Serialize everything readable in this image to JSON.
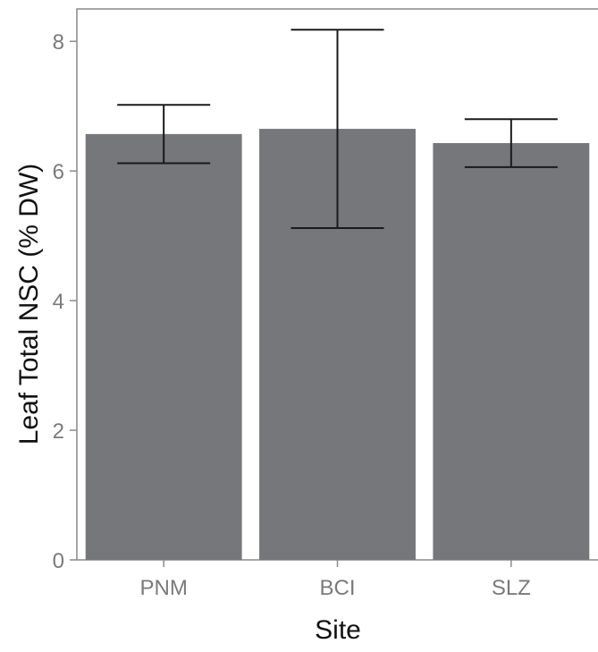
{
  "chart_data": {
    "type": "bar",
    "title": "",
    "xlabel": "Site",
    "ylabel": "Leaf Total NSC (% DW)",
    "categories": [
      "PNM",
      "BCI",
      "SLZ"
    ],
    "values": [
      6.57,
      6.65,
      6.43
    ],
    "error_low": [
      6.12,
      5.12,
      6.06
    ],
    "error_high": [
      7.02,
      8.18,
      6.8
    ],
    "ylim": [
      0,
      8.5
    ],
    "yticks": [
      0,
      2,
      4,
      6,
      8
    ],
    "ytick_labels": [
      "0",
      "2",
      "4",
      "6",
      "8"
    ],
    "grid": false,
    "legend": "none",
    "colors": {
      "bar": "#76777b",
      "error_bar": "#1a1a1a",
      "axis": "#8a8a8a",
      "tick_label": "#7a7a7a",
      "axis_title": "#111111"
    }
  }
}
